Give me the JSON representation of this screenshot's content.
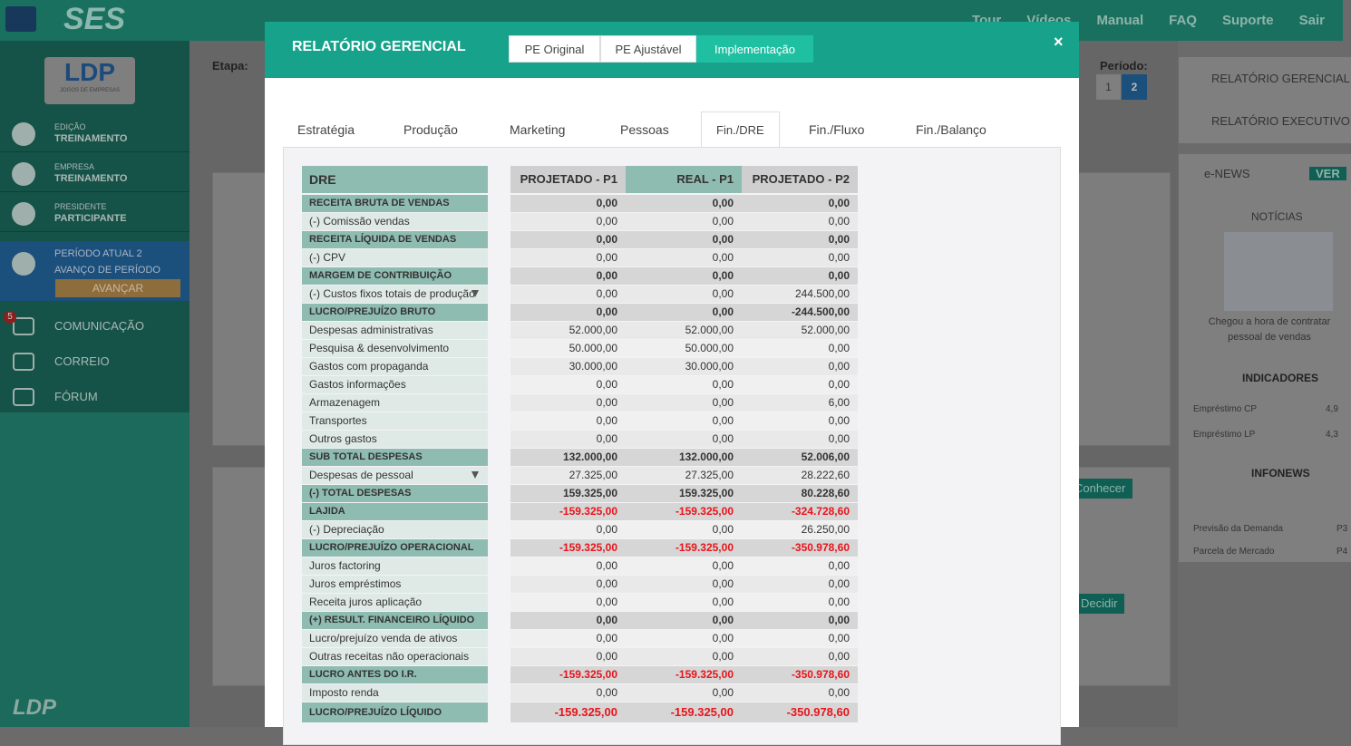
{
  "navbar": {
    "brand": "SES",
    "links": [
      "Tour",
      "Vídeos",
      "Manual",
      "FAQ",
      "Suporte",
      "Sair"
    ]
  },
  "sidebar": {
    "logo": "LDP",
    "logo_sub": "JOGOS DE EMPRESAS",
    "items": [
      {
        "label": "EDIÇÃO",
        "value": "TREINAMENTO"
      },
      {
        "label": "EMPRESA",
        "value": "TREINAMENTO"
      },
      {
        "label": "PRESIDENTE",
        "value": "PARTICIPANTE"
      }
    ],
    "period": "PERÍODO ATUAL 2",
    "advance": "AVANÇO DE PERÍODO",
    "advance_button": "AVANÇAR",
    "menu": [
      {
        "label": "COMUNICAÇÃO",
        "badge": "5"
      },
      {
        "label": "CORREIO"
      },
      {
        "label": "FÓRUM"
      }
    ],
    "footer": "LDP"
  },
  "background": {
    "etapa": "Etapa:",
    "periodo": "Período:",
    "periods": [
      "1",
      "2"
    ],
    "buttons": [
      "Conhecer",
      "Decidir"
    ],
    "right_panel": {
      "links": [
        "RELATÓRIO GERENCIAL",
        "RELATÓRIO EXECUTIVO"
      ],
      "enews": "e-NEWS",
      "ver": "VER",
      "noticias": "NOTÍCIAS",
      "news_caption": "Chegou a hora de contratar pessoal de vendas",
      "indicadores": "INDICADORES",
      "indicators": [
        [
          "Empréstimo CP",
          "4,9"
        ],
        [
          "Empréstimo LP",
          "4,3"
        ]
      ],
      "infonews": "INFONEWS",
      "infos": [
        [
          "Previsão da Demanda",
          "P3"
        ],
        [
          "Parcela de Mercado",
          "P4"
        ]
      ]
    }
  },
  "modal": {
    "title": "RELATÓRIO GERENCIAL",
    "views": [
      "PE Original",
      "PE Ajustável",
      "Implementação"
    ],
    "active_view": 2,
    "tabs": [
      "Estratégia",
      "Produção",
      "Marketing",
      "Pessoas",
      "Fin./DRE",
      "Fin./Fluxo",
      "Fin./Balanço"
    ],
    "active_tab": 4,
    "table": {
      "headers": [
        "DRE",
        "PROJETADO - P1",
        "REAL - P1",
        "PROJETADO - P2"
      ],
      "value_color": "#e8141b",
      "rows": [
        {
          "label": "RECEITA BRUTA DE VENDAS",
          "bold": true,
          "values": [
            "0,00",
            "0,00",
            "0,00"
          ]
        },
        {
          "label": "(-) Comissão vendas",
          "values": [
            "0,00",
            "0,00",
            "0,00"
          ]
        },
        {
          "label": "RECEITA LÍQUIDA DE VENDAS",
          "bold": true,
          "values": [
            "0,00",
            "0,00",
            "0,00"
          ]
        },
        {
          "label": "(-) CPV",
          "values": [
            "0,00",
            "0,00",
            "0,00"
          ]
        },
        {
          "label": "MARGEM DE CONTRIBUIÇÃO",
          "bold": true,
          "values": [
            "0,00",
            "0,00",
            "0,00"
          ]
        },
        {
          "label": "(-) Custos fixos totais de produção",
          "expand": true,
          "values": [
            "0,00",
            "0,00",
            "244.500,00"
          ]
        },
        {
          "label": "LUCRO/PREJUÍZO BRUTO",
          "bold": true,
          "values": [
            "0,00",
            "0,00",
            "-244.500,00"
          ]
        },
        {
          "label": "Despesas administrativas",
          "values": [
            "52.000,00",
            "52.000,00",
            "52.000,00"
          ]
        },
        {
          "label": "Pesquisa & desenvolvimento",
          "values": [
            "50.000,00",
            "50.000,00",
            "0,00"
          ]
        },
        {
          "label": "Gastos com propaganda",
          "values": [
            "30.000,00",
            "30.000,00",
            "0,00"
          ]
        },
        {
          "label": "Gastos informações",
          "values": [
            "0,00",
            "0,00",
            "0,00"
          ]
        },
        {
          "label": "Armazenagem",
          "values": [
            "0,00",
            "0,00",
            "6,00"
          ]
        },
        {
          "label": "Transportes",
          "values": [
            "0,00",
            "0,00",
            "0,00"
          ]
        },
        {
          "label": "Outros gastos",
          "values": [
            "0,00",
            "0,00",
            "0,00"
          ]
        },
        {
          "label": "SUB TOTAL DESPESAS",
          "bold": true,
          "values": [
            "132.000,00",
            "132.000,00",
            "52.006,00"
          ]
        },
        {
          "label": "Despesas de pessoal",
          "expand": true,
          "values": [
            "27.325,00",
            "27.325,00",
            "28.222,60"
          ]
        },
        {
          "label": "(-) TOTAL DESPESAS",
          "bold": true,
          "values": [
            "159.325,00",
            "159.325,00",
            "80.228,60"
          ]
        },
        {
          "label": "LAJIDA",
          "bold": true,
          "red": true,
          "values": [
            "-159.325,00",
            "-159.325,00",
            "-324.728,60"
          ]
        },
        {
          "label": "(-) Depreciação",
          "values": [
            "0,00",
            "0,00",
            "26.250,00"
          ]
        },
        {
          "label": "LUCRO/PREJUÍZO OPERACIONAL",
          "bold": true,
          "red": true,
          "values": [
            "-159.325,00",
            "-159.325,00",
            "-350.978,60"
          ]
        },
        {
          "label": "Juros factoring",
          "values": [
            "0,00",
            "0,00",
            "0,00"
          ]
        },
        {
          "label": "Juros empréstimos",
          "values": [
            "0,00",
            "0,00",
            "0,00"
          ]
        },
        {
          "label": "Receita juros aplicação",
          "values": [
            "0,00",
            "0,00",
            "0,00"
          ]
        },
        {
          "label": "(+) RESULT. FINANCEIRO LÍQUIDO",
          "bold": true,
          "values": [
            "0,00",
            "0,00",
            "0,00"
          ]
        },
        {
          "label": "Lucro/prejuízo venda de ativos",
          "values": [
            "0,00",
            "0,00",
            "0,00"
          ]
        },
        {
          "label": "Outras receitas não operacionais",
          "values": [
            "0,00",
            "0,00",
            "0,00"
          ]
        },
        {
          "label": "LUCRO ANTES DO I.R.",
          "bold": true,
          "red": true,
          "values": [
            "-159.325,00",
            "-159.325,00",
            "-350.978,60"
          ]
        },
        {
          "label": "Imposto renda",
          "values": [
            "0,00",
            "0,00",
            "0,00"
          ]
        },
        {
          "label": "LUCRO/PREJUÍZO LÍQUIDO",
          "bold": true,
          "red": true,
          "total": true,
          "values": [
            "-159.325,00",
            "-159.325,00",
            "-350.978,60"
          ]
        }
      ]
    }
  }
}
